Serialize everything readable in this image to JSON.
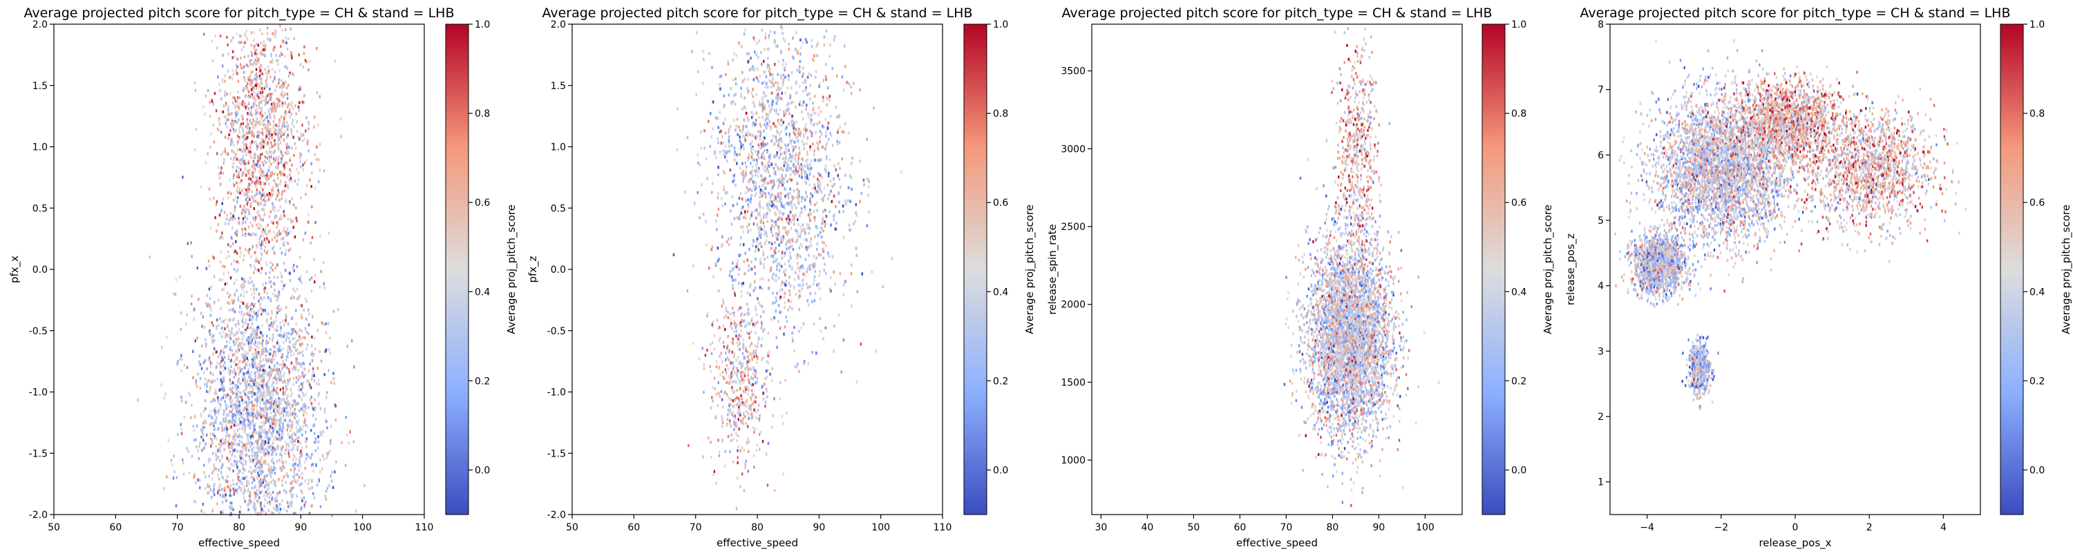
{
  "chart_data": [
    {
      "type": "heatmap",
      "title": "Average projected pitch score for pitch_type = CH & stand = LHB",
      "xlabel": "effective_speed",
      "ylabel": "pfx_x",
      "xlim": [
        50,
        110
      ],
      "ylim": [
        -2.0,
        2.0
      ],
      "xticks": [
        "50",
        "60",
        "70",
        "80",
        "90",
        "100",
        "110"
      ],
      "yticks": [
        "-2.0",
        "-1.5",
        "-1.0",
        "-0.5",
        "0.0",
        "0.5",
        "1.0",
        "1.5",
        "2.0"
      ],
      "colorbar": {
        "label": "Average proj_pitch_score",
        "range": [
          -0.1,
          1.0
        ],
        "ticks": [
          "0.0",
          "0.2",
          "0.4",
          "0.6",
          "0.8",
          "1.0"
        ],
        "colormap": "coolwarm"
      },
      "clusters": [
        {
          "center": [
            83,
            -1.15
          ],
          "spread": [
            5.2,
            0.6
          ],
          "density": "high",
          "score_mean": 0.38
        },
        {
          "center": [
            83.5,
            1.05
          ],
          "spread": [
            3.6,
            0.55
          ],
          "density": "medium",
          "score_mean": 0.55
        }
      ],
      "grid": false
    },
    {
      "type": "heatmap",
      "title": "Average projected pitch score for pitch_type = CH & stand = LHB",
      "xlabel": "effective_speed",
      "ylabel": "pfx_z",
      "xlim": [
        50,
        110
      ],
      "ylim": [
        -2.0,
        2.0
      ],
      "xticks": [
        "50",
        "60",
        "70",
        "80",
        "90",
        "100",
        "110"
      ],
      "yticks": [
        "-2.0",
        "-1.5",
        "-1.0",
        "-0.5",
        "0.0",
        "0.5",
        "1.0",
        "1.5",
        "2.0"
      ],
      "colorbar": {
        "label": "Average proj_pitch_score",
        "range": [
          -0.1,
          1.0
        ],
        "ticks": [
          "0.0",
          "0.2",
          "0.4",
          "0.6",
          "0.8",
          "1.0"
        ],
        "colormap": "coolwarm"
      },
      "clusters": [
        {
          "center": [
            83.5,
            0.75
          ],
          "spread": [
            5.5,
            0.65
          ],
          "density": "high",
          "score_mean": 0.4
        },
        {
          "center": [
            77,
            -0.9
          ],
          "spread": [
            2.5,
            0.35
          ],
          "density": "low",
          "score_mean": 0.5
        }
      ],
      "grid": false
    },
    {
      "type": "heatmap",
      "title": "Average projected pitch score for pitch_type = CH & stand = LHB",
      "xlabel": "effective_speed",
      "ylabel": "release_spin_rate",
      "xlim": [
        28,
        108
      ],
      "ylim": [
        650,
        3800
      ],
      "xticks": [
        "30",
        "40",
        "50",
        "60",
        "70",
        "80",
        "90",
        "100"
      ],
      "yticks": [
        "1000",
        "1500",
        "2000",
        "2500",
        "3000",
        "3500"
      ],
      "colorbar": {
        "label": "Average proj_pitch_score",
        "range": [
          -0.1,
          1.0
        ],
        "ticks": [
          "0.0",
          "0.2",
          "0.4",
          "0.6",
          "0.8",
          "1.0"
        ],
        "colormap": "coolwarm"
      },
      "clusters": [
        {
          "center": [
            83.5,
            1800
          ],
          "spread": [
            4.5,
            320
          ],
          "density": "high",
          "score_mean": 0.4
        },
        {
          "center": [
            85,
            3000
          ],
          "spread": [
            2.2,
            330
          ],
          "density": "low",
          "score_mean": 0.6
        }
      ],
      "grid": false
    },
    {
      "type": "heatmap",
      "title": "Average projected pitch score for pitch_type = CH & stand = LHB",
      "xlabel": "release_pos_x",
      "ylabel": "release_pos_z",
      "xlim": [
        -5.0,
        5.0
      ],
      "ylim": [
        0.5,
        8.0
      ],
      "xticks": [
        "−4",
        "−2",
        "0",
        "2",
        "4"
      ],
      "yticks": [
        "1",
        "2",
        "3",
        "4",
        "5",
        "6",
        "7",
        "8"
      ],
      "colorbar": {
        "label": "Average proj_pitch_score",
        "range": [
          -0.1,
          1.0
        ],
        "ticks": [
          "0.0",
          "0.2",
          "0.4",
          "0.6",
          "0.8",
          "1.0"
        ],
        "colormap": "coolwarm"
      },
      "clusters": [
        {
          "center": [
            -2.0,
            5.8
          ],
          "spread": [
            0.9,
            0.55
          ],
          "density": "high",
          "score_mean": 0.4
        },
        {
          "center": [
            -3.7,
            4.35
          ],
          "spread": [
            0.35,
            0.22
          ],
          "density": "medium",
          "score_mean": 0.35
        },
        {
          "center": [
            -2.6,
            2.75
          ],
          "spread": [
            0.15,
            0.2
          ],
          "density": "low",
          "score_mean": 0.3
        },
        {
          "center": [
            -0.2,
            6.55
          ],
          "spread": [
            0.7,
            0.3
          ],
          "density": "medium",
          "score_mean": 0.6
        },
        {
          "center": [
            2.0,
            5.8
          ],
          "spread": [
            0.85,
            0.45
          ],
          "density": "medium",
          "score_mean": 0.55
        }
      ],
      "grid": false
    }
  ]
}
